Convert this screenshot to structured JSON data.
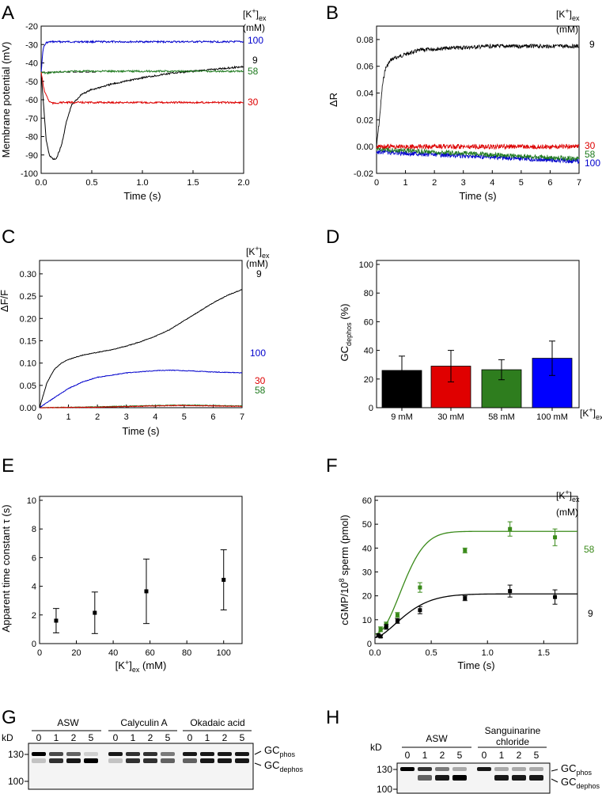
{
  "panels": {
    "A": {
      "letter": "A",
      "legend_header": {
        "base": "[K",
        "sup": "+",
        "close": "]",
        "sub": "ex"
      },
      "legend_unit": "(mM)",
      "ylabel": "Membrane potential (mV)",
      "xlabel": "Time (s)",
      "xticks": [
        "0.0",
        "0.5",
        "1.0",
        "1.5",
        "2.0"
      ],
      "yticks": [
        "-20",
        "-30",
        "-40",
        "-50",
        "-60",
        "-70",
        "-80",
        "-90",
        "-100"
      ],
      "trace_labels": [
        "100",
        "9",
        "58",
        "30"
      ]
    },
    "B": {
      "letter": "B",
      "legend_header": {
        "base": "[K",
        "sup": "+",
        "close": "]",
        "sub": "ex"
      },
      "legend_unit": "(mM)",
      "ylabel": "ΔR",
      "xlabel": "Time (s)",
      "xticks": [
        "0",
        "1",
        "2",
        "3",
        "4",
        "5",
        "6",
        "7"
      ],
      "yticks": [
        "0.08",
        "0.06",
        "0.04",
        "0.02",
        "0.00",
        "-0.02"
      ],
      "trace_labels": [
        "9",
        "30",
        "58",
        "100"
      ]
    },
    "C": {
      "letter": "C",
      "legend_header": {
        "base": "[K",
        "sup": "+",
        "close": "]",
        "sub": "ex"
      },
      "legend_unit": "(mM)",
      "ylabel": "ΔF/F",
      "xlabel": "Time (s)",
      "xticks": [
        "0",
        "1",
        "2",
        "3",
        "4",
        "5",
        "6",
        "7"
      ],
      "yticks": [
        "0.30",
        "0.25",
        "0.20",
        "0.15",
        "0.10",
        "0.05",
        "0.00"
      ],
      "trace_labels": [
        "9",
        "100",
        "30",
        "58"
      ]
    },
    "D": {
      "letter": "D",
      "ylabel_main": "GC",
      "ylabel_sub": "dephos",
      "ylabel_unit": " (%)",
      "xlabel_suffix": {
        "base": "[K",
        "sup": "+",
        "close": "]",
        "sub": "ex"
      },
      "yticks": [
        "100",
        "80",
        "60",
        "40",
        "20",
        "0"
      ],
      "categories": [
        "9 mM",
        "30 mM",
        "58 mM",
        "100 mM"
      ]
    },
    "E": {
      "letter": "E",
      "ylabel": "Apparent time constant τ (s)",
      "xlabel": {
        "base": "[K",
        "sup": "+",
        "close": "]",
        "sub": "ex",
        "unit": " (mM)"
      },
      "xticks": [
        "0",
        "20",
        "40",
        "60",
        "80",
        "100"
      ],
      "yticks": [
        "10",
        "8",
        "6",
        "4",
        "2",
        "0"
      ]
    },
    "F": {
      "letter": "F",
      "legend_header": {
        "base": "[K",
        "sup": "+",
        "close": "]",
        "sub": "ex"
      },
      "legend_unit": "(mM)",
      "ylabel": {
        "pre": "cGMP/10",
        "sup": "8",
        "post": " sperm (pmol)"
      },
      "xlabel": "Time (s)",
      "xticks": [
        "0.0",
        "0.5",
        "1.0",
        "1.5"
      ],
      "yticks": [
        "60",
        "50",
        "40",
        "30",
        "20",
        "10",
        "0"
      ],
      "trace_labels": [
        "58",
        "9"
      ]
    },
    "G": {
      "letter": "G",
      "kd": "kD",
      "groups": [
        "ASW",
        "Calyculin A",
        "Okadaic acid"
      ],
      "lanes": [
        "0",
        "1",
        "2",
        "5"
      ],
      "markers": [
        "130",
        "100"
      ],
      "band_phos": {
        "base": "GC",
        "sub": "phos"
      },
      "band_dephos": {
        "base": "GC",
        "sub": "dephos"
      }
    },
    "H": {
      "letter": "H",
      "kd": "kD",
      "groups": [
        "ASW",
        "Sanguinarine",
        "chloride"
      ],
      "lanes": [
        "0",
        "1",
        "2",
        "5"
      ],
      "markers": [
        "130",
        "100"
      ],
      "band_phos": {
        "base": "GC",
        "sub": "phos"
      },
      "band_dephos": {
        "base": "GC",
        "sub": "dephos"
      }
    }
  },
  "chart_data": [
    {
      "panel": "A",
      "type": "line",
      "xlabel": "Time (s)",
      "ylabel": "Membrane potential (mV)",
      "xlim": [
        0,
        2.0
      ],
      "ylim": [
        -100,
        -20
      ],
      "dashed_reference_y": -45,
      "series": [
        {
          "name": "100",
          "color": "#0000cc",
          "x": [
            0,
            0.02,
            0.05,
            0.1,
            0.5,
            1.0,
            1.5,
            2.0
          ],
          "y": [
            -45,
            -32,
            -29,
            -28.5,
            -28.5,
            -28.5,
            -28.5,
            -28.5
          ]
        },
        {
          "name": "9",
          "color": "#000000",
          "x": [
            0,
            0.02,
            0.05,
            0.08,
            0.12,
            0.15,
            0.2,
            0.25,
            0.3,
            0.4,
            0.5,
            0.7,
            1.0,
            1.3,
            1.6,
            2.0
          ],
          "y": [
            -45,
            -60,
            -82,
            -90,
            -92.5,
            -92,
            -85,
            -72,
            -63,
            -57,
            -54.5,
            -51.5,
            -48,
            -45.5,
            -44,
            -42
          ]
        },
        {
          "name": "58",
          "color": "#1e7a1e",
          "x": [
            0,
            0.05,
            0.15,
            0.3,
            0.6,
            1.0,
            1.5,
            2.0
          ],
          "y": [
            -45,
            -45.5,
            -45,
            -44.5,
            -44.5,
            -44.5,
            -44.5,
            -44.5
          ]
        },
        {
          "name": "30",
          "color": "#dd0000",
          "x": [
            0,
            0.03,
            0.08,
            0.12,
            0.2,
            0.5,
            1.0,
            1.5,
            2.0
          ],
          "y": [
            -45,
            -55,
            -61,
            -62,
            -61.5,
            -61.5,
            -61.5,
            -61.5,
            -61.5
          ]
        }
      ]
    },
    {
      "panel": "B",
      "type": "line",
      "xlabel": "Time (s)",
      "ylabel": "ΔR",
      "xlim": [
        0,
        7
      ],
      "ylim": [
        -0.02,
        0.09
      ],
      "series": [
        {
          "name": "9",
          "color": "#000000",
          "x": [
            0,
            0.1,
            0.2,
            0.3,
            0.5,
            1.0,
            1.5,
            2.0,
            3.0,
            4.0,
            5.0,
            6.0,
            7.0
          ],
          "y": [
            0,
            0.02,
            0.045,
            0.058,
            0.065,
            0.069,
            0.072,
            0.073,
            0.074,
            0.075,
            0.075,
            0.075,
            0.075
          ]
        },
        {
          "name": "30",
          "color": "#dd0000",
          "x": [
            0,
            1,
            2,
            3,
            4,
            5,
            6,
            7
          ],
          "y": [
            0,
            0,
            0,
            0,
            0,
            0,
            0,
            0
          ]
        },
        {
          "name": "58",
          "color": "#1e7a1e",
          "x": [
            0,
            1,
            2,
            3,
            4,
            5,
            6,
            7
          ],
          "y": [
            -0.002,
            -0.003,
            -0.004,
            -0.005,
            -0.006,
            -0.007,
            -0.008,
            -0.009
          ]
        },
        {
          "name": "100",
          "color": "#0000cc",
          "x": [
            0,
            1,
            2,
            3,
            4,
            5,
            6,
            7
          ],
          "y": [
            -0.004,
            -0.005,
            -0.006,
            -0.007,
            -0.008,
            -0.009,
            -0.01,
            -0.011
          ]
        }
      ]
    },
    {
      "panel": "C",
      "type": "line",
      "xlabel": "Time (s)",
      "ylabel": "ΔF/F",
      "xlim": [
        0,
        7
      ],
      "ylim": [
        0,
        0.3
      ],
      "series": [
        {
          "name": "9",
          "color": "#000000",
          "x": [
            0,
            0.25,
            0.5,
            0.75,
            1.0,
            1.5,
            2.0,
            2.5,
            3.0,
            3.5,
            4.0,
            4.5,
            5.0,
            5.5,
            6.0,
            6.5,
            7.0
          ],
          "y": [
            0,
            0.055,
            0.085,
            0.1,
            0.108,
            0.118,
            0.124,
            0.13,
            0.138,
            0.148,
            0.16,
            0.175,
            0.195,
            0.215,
            0.235,
            0.252,
            0.265
          ]
        },
        {
          "name": "100",
          "color": "#0000cc",
          "x": [
            0,
            0.5,
            1.0,
            1.5,
            2.0,
            3.0,
            4.0,
            4.5,
            5.0,
            6.0,
            7.0
          ],
          "y": [
            0,
            0.022,
            0.043,
            0.058,
            0.068,
            0.078,
            0.083,
            0.084,
            0.083,
            0.08,
            0.078
          ]
        },
        {
          "name": "30",
          "color": "#dd0000",
          "x": [
            0,
            2,
            4,
            5,
            6,
            7
          ],
          "y": [
            0,
            0.001,
            0.004,
            0.005,
            0.004,
            0.003
          ]
        },
        {
          "name": "58",
          "color": "#1e7a1e",
          "x": [
            0,
            2,
            4,
            5,
            6,
            7
          ],
          "y": [
            0,
            0.002,
            0.005,
            0.006,
            0.005,
            0.004
          ]
        }
      ]
    },
    {
      "panel": "D",
      "type": "bar",
      "ylim": [
        0,
        100
      ],
      "categories": [
        "9 mM",
        "30 mM",
        "58 mM",
        "100 mM"
      ],
      "values": [
        26,
        29,
        26.5,
        34.5
      ],
      "errors": [
        10,
        11,
        7,
        12
      ],
      "colors": [
        "#000000",
        "#e00000",
        "#2e7d1e",
        "#0000ff"
      ]
    },
    {
      "panel": "E",
      "type": "scatter",
      "xlim": [
        0,
        110
      ],
      "ylim": [
        0,
        10
      ],
      "x": [
        9,
        30,
        58,
        100
      ],
      "y": [
        1.6,
        2.15,
        3.65,
        4.45
      ],
      "errors": [
        0.85,
        1.45,
        2.25,
        2.1
      ]
    },
    {
      "panel": "F",
      "type": "scatter",
      "xlabel": "Time (s)",
      "xlim": [
        0,
        1.8
      ],
      "ylim": [
        0,
        60
      ],
      "series": [
        {
          "name": "58",
          "color": "#3a8a1a",
          "x": [
            0.05,
            0.1,
            0.2,
            0.4,
            0.8,
            1.2,
            1.6
          ],
          "y": [
            6,
            8,
            12,
            23.5,
            39,
            48,
            44.5
          ],
          "errors": [
            1,
            1,
            1,
            2,
            1,
            3,
            3.5
          ],
          "fit_plateau": 47,
          "fit_start": 4,
          "fit_k": 3.2,
          "fit_n": 2.0
        },
        {
          "name": "9",
          "color": "#000000",
          "x": [
            0.03,
            0.05,
            0.1,
            0.2,
            0.4,
            0.8,
            1.2,
            1.6
          ],
          "y": [
            3.5,
            3,
            7,
            9.5,
            14,
            19,
            22,
            19.5
          ],
          "errors": [
            0.5,
            0.5,
            1,
            1,
            1.5,
            1,
            2.5,
            3
          ],
          "fit_plateau": 20.8,
          "fit_start": 2.5,
          "fit_k": 3.0,
          "fit_n": 1.6
        }
      ]
    }
  ]
}
